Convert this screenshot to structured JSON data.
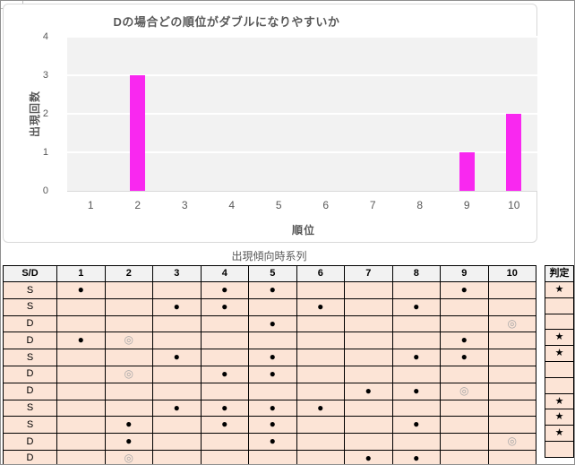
{
  "chart_data": {
    "type": "bar",
    "title": "Dの場合どの順位がダブルになりやすいか",
    "categories": [
      "1",
      "2",
      "3",
      "4",
      "5",
      "6",
      "7",
      "8",
      "9",
      "10"
    ],
    "values": [
      0,
      3,
      0,
      0,
      0,
      0,
      0,
      0,
      1,
      2
    ],
    "xlabel": "順位",
    "ylabel": "出現回数",
    "ylim": [
      0,
      4
    ],
    "yticks": [
      0,
      1,
      2,
      3,
      4
    ],
    "grid": true,
    "legend": "none",
    "bar_color": "#F928F0",
    "plot_bg": "#F2F2F2"
  },
  "table": {
    "title": "出現傾向時系列",
    "corner_header": "S/D",
    "columns": [
      "1",
      "2",
      "3",
      "4",
      "5",
      "6",
      "7",
      "8",
      "9",
      "10"
    ],
    "judge_header": "判定",
    "marks_legend": {
      "filled": "●",
      "double": "◎",
      "star": "★"
    },
    "rows": [
      {
        "sd": "S",
        "cells": [
          "●",
          "",
          "",
          "●",
          "●",
          "",
          "",
          "",
          "●",
          ""
        ],
        "judge": "★"
      },
      {
        "sd": "S",
        "cells": [
          "",
          "",
          "●",
          "●",
          "",
          "●",
          "",
          "●",
          "",
          ""
        ],
        "judge": ""
      },
      {
        "sd": "D",
        "cells": [
          "",
          "",
          "",
          "",
          "●",
          "",
          "",
          "",
          "",
          "◎"
        ],
        "judge": ""
      },
      {
        "sd": "D",
        "cells": [
          "●",
          "◎",
          "",
          "",
          "",
          "",
          "",
          "",
          "●",
          ""
        ],
        "judge": "★"
      },
      {
        "sd": "S",
        "cells": [
          "",
          "",
          "●",
          "",
          "●",
          "",
          "",
          "●",
          "●",
          ""
        ],
        "judge": "★"
      },
      {
        "sd": "D",
        "cells": [
          "",
          "◎",
          "",
          "●",
          "●",
          "",
          "",
          "",
          "",
          ""
        ],
        "judge": ""
      },
      {
        "sd": "D",
        "cells": [
          "",
          "",
          "",
          "",
          "",
          "",
          "●",
          "●",
          "◎",
          ""
        ],
        "judge": ""
      },
      {
        "sd": "S",
        "cells": [
          "",
          "",
          "●",
          "●",
          "●",
          "●",
          "",
          "",
          "",
          ""
        ],
        "judge": "★"
      },
      {
        "sd": "S",
        "cells": [
          "",
          "●",
          "",
          "●",
          "●",
          "",
          "",
          "●",
          "",
          ""
        ],
        "judge": "★"
      },
      {
        "sd": "D",
        "cells": [
          "",
          "●",
          "",
          "",
          "●",
          "",
          "",
          "",
          "",
          "◎"
        ],
        "judge": "★"
      },
      {
        "sd": "D",
        "cells": [
          "",
          "◎",
          "",
          "",
          "",
          "",
          "●",
          "●",
          "",
          ""
        ],
        "judge": ""
      }
    ]
  },
  "colors": {
    "bar": "#F928F0",
    "plot_background": "#F2F2F2",
    "row_background": "#FCE4D6",
    "header_background": "#F2F2F2",
    "axis_text": "#595959",
    "double_mark": "#A6A6A6"
  }
}
